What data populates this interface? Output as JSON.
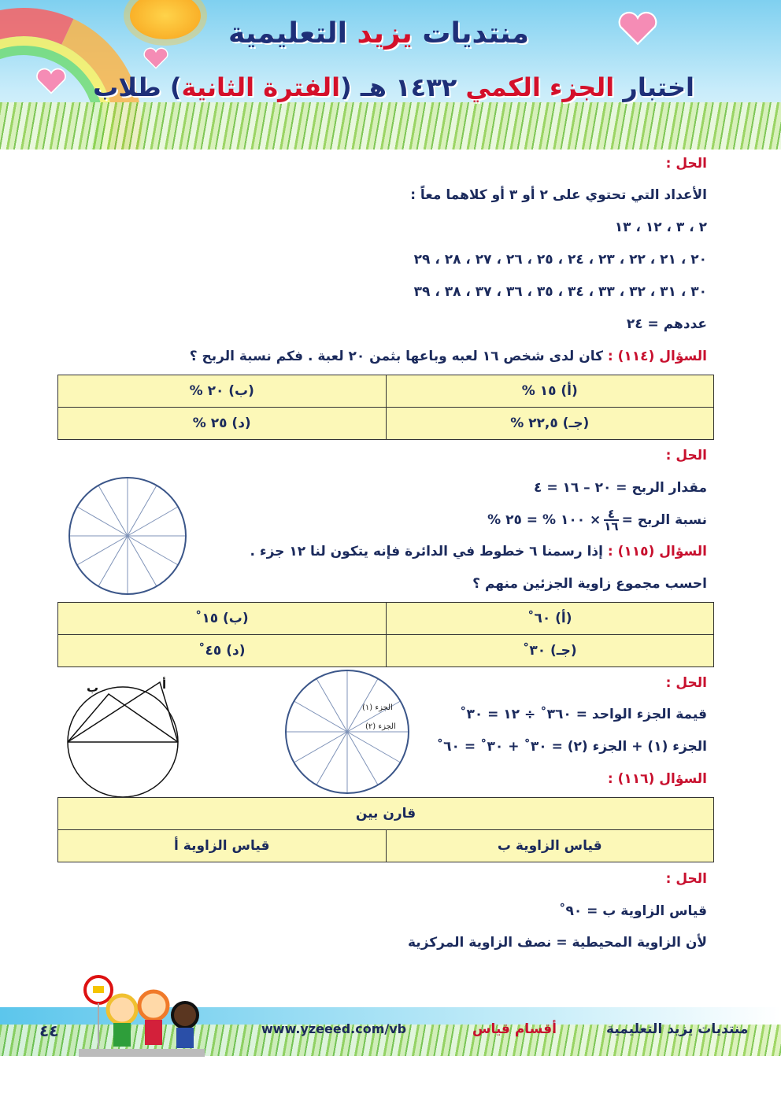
{
  "header": {
    "site_name_1": "منتديات",
    "site_name_red": "يزيد",
    "site_name_2": "التعليمية",
    "title_1": "اختبار",
    "title_red1": "الجزء الكمي",
    "title_2": "١٤٣٢ هـ (",
    "title_red2": "الفترة الثانية",
    "title_3": ") طلاب"
  },
  "sec1": {
    "solution_label": "الحل :",
    "line1": "الأعداد التي تحتوي على ٢ أو ٣ أو كلاهما معاً :",
    "line2": "٢ ، ٣ ، ١٢ ، ١٣",
    "line3": "٢٠ ، ٢١ ، ٢٢ ، ٢٣ ، ٢٤ ، ٢٥ ، ٢٦ ، ٢٧ ، ٢٨ ، ٢٩",
    "line4": "٣٠ ، ٣١ ، ٣٢ ، ٣٣ ، ٣٤ ، ٣٥ ، ٣٦ ، ٣٧ ، ٣٨ ، ٣٩",
    "line5": "عددهم = ٢٤"
  },
  "q114": {
    "label": "السؤال (١١٤) :",
    "text": "كان لدى شخص ١٦ لعبه وباعها بثمن ٢٠ لعبة . فكم نسبة الربح ؟",
    "options": [
      "(أ) ١٥ %",
      "(ب) ٢٠ %",
      "(جـ) ٢٢,٥ %",
      "(د) ٢٥ %"
    ],
    "solution_label": "الحل :",
    "sol1": "مقدار الربح = ٢٠ – ١٦ = ٤",
    "sol2_a": "نسبة الربح =",
    "frac_num": "٤",
    "frac_den": "١٦",
    "sol2_b": "× ١٠٠ % = ٢٥ %"
  },
  "q115": {
    "label": "السؤال (١١٥) :",
    "text": "إذا رسمنا ٦ خطوط في الدائرة فإنه يتكون لنا ١٢ جزء .",
    "text2": "احسب مجموع زاوية الجزئين منهم ؟",
    "options": [
      "(أ) ٦٠˚",
      "(ب) ١٥˚",
      "(جـ) ٣٠˚",
      "(د) ٤٥˚"
    ],
    "solution_label": "الحل :",
    "sol1": "قيمة الجزء الواحد = ٣٦٠˚ ÷ ١٢ = ٣٠˚",
    "sol2": "الجزء (١) + الجزء (٢) = ٣٠˚ + ٣٠˚ = ٦٠˚",
    "diagram_label1": "الجزء (١)",
    "diagram_label2": "الجزء (٢)"
  },
  "q116": {
    "label": "السؤال (١١٦) :",
    "compare": "قارن بين",
    "col_right": "قياس الزاوية ب",
    "col_left": "قياس الزاوية أ",
    "point_a": "أ",
    "point_b": "ب",
    "solution_label": "الحل :",
    "sol1": "قياس الزاوية ب = ٩٠˚",
    "sol2": "لأن الزاوية المحيطية = نصف الزاوية المركزية"
  },
  "footer": {
    "site": "منتديات يزيد التعليمية",
    "section": "أقسام قياس",
    "url": "www.yzeeed.com/vb",
    "page": "٤٤"
  },
  "colors": {
    "text": "#1b2a5c",
    "accent": "#c8102e",
    "table_bg": "#fcf8b8"
  }
}
